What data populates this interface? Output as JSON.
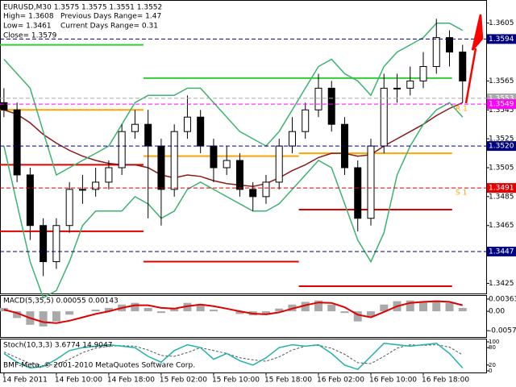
{
  "header": {
    "symbol_line": "EURUSD,M30  1.3575 1.3575 1.3551 1.3552",
    "high": "High= 1.3608",
    "prev_range": "Previous Days Range= 1.47",
    "low": "Low= 1.3461",
    "curr_range": "Current Days Range= 0.31",
    "close": "Close= 1.3579"
  },
  "footer": "BMF-Meta, © 2001-2010 MetaQuotes Software Corp.",
  "chart_data": [
    {
      "type": "candlestick",
      "xlim": [
        -0.3,
        36.86
      ],
      "xticks": [
        {
          "value": 0,
          "label": "14 Feb 2011"
        },
        {
          "value": 4,
          "label": "14 Feb 10:00"
        },
        {
          "value": 8,
          "label": "14 Feb 18:00"
        },
        {
          "value": 12,
          "label": "15 Feb 02:00"
        },
        {
          "value": 16,
          "label": "15 Feb 10:00"
        },
        {
          "value": 20,
          "label": "15 Feb 18:00"
        },
        {
          "value": 24,
          "label": "16 Feb 02:00"
        },
        {
          "value": 28,
          "label": "16 Feb 10:00"
        },
        {
          "value": 32,
          "label": "16 Feb 18:00"
        }
      ],
      "ylim": [
        1.3418,
        1.3621
      ],
      "yticks": [
        1.3605,
        1.3565,
        1.3545,
        1.3525,
        1.3505,
        1.3485,
        1.3465,
        1.3425
      ],
      "open": [
        1.355,
        1.3545,
        1.35,
        1.3465,
        1.344,
        1.3465,
        1.349,
        1.349,
        1.3495,
        1.3505,
        1.353,
        1.3535,
        1.352,
        1.349,
        1.353,
        1.354,
        1.352,
        1.3505,
        1.351,
        1.349,
        1.3485,
        1.3495,
        1.352,
        1.353,
        1.3545,
        1.356,
        1.3535,
        1.3505,
        1.347,
        1.352,
        1.356,
        1.356,
        1.3565,
        1.3575,
        1.3595,
        1.3585
      ],
      "high": [
        1.356,
        1.355,
        1.3505,
        1.347,
        1.347,
        1.3495,
        1.35,
        1.3505,
        1.351,
        1.3535,
        1.3545,
        1.3545,
        1.3525,
        1.3535,
        1.3555,
        1.3545,
        1.3525,
        1.352,
        1.3515,
        1.3495,
        1.35,
        1.3525,
        1.354,
        1.355,
        1.357,
        1.3565,
        1.354,
        1.351,
        1.3525,
        1.357,
        1.357,
        1.3575,
        1.3585,
        1.3608,
        1.36,
        1.359
      ],
      "low": [
        1.354,
        1.3495,
        1.3455,
        1.343,
        1.3435,
        1.346,
        1.348,
        1.3485,
        1.349,
        1.35,
        1.3525,
        1.347,
        1.3465,
        1.3485,
        1.3525,
        1.3515,
        1.3495,
        1.35,
        1.3485,
        1.3475,
        1.348,
        1.349,
        1.3515,
        1.3525,
        1.354,
        1.353,
        1.35,
        1.3461,
        1.3465,
        1.3515,
        1.355,
        1.3555,
        1.356,
        1.357,
        1.3575,
        1.355
      ],
      "close": [
        1.3545,
        1.35,
        1.3465,
        1.344,
        1.3465,
        1.349,
        1.349,
        1.3495,
        1.3505,
        1.353,
        1.3535,
        1.352,
        1.349,
        1.353,
        1.354,
        1.352,
        1.3505,
        1.351,
        1.349,
        1.3485,
        1.3495,
        1.352,
        1.353,
        1.3545,
        1.356,
        1.3535,
        1.3505,
        1.347,
        1.352,
        1.356,
        1.356,
        1.3565,
        1.3575,
        1.3595,
        1.3585,
        1.3565
      ],
      "overlays": [
        {
          "color": "#8b1a1a",
          "values": [
            1.3545,
            1.3542,
            1.3536,
            1.3528,
            1.3522,
            1.3517,
            1.3513,
            1.351,
            1.3508,
            1.3507,
            1.3507,
            1.3505,
            1.35,
            1.3498,
            1.35,
            1.3499,
            1.3496,
            1.3494,
            1.3493,
            1.3492,
            1.3494,
            1.3498,
            1.3503,
            1.3507,
            1.3512,
            1.3515,
            1.3515,
            1.3513,
            1.3514,
            1.352,
            1.3525,
            1.353,
            1.3535,
            1.3541,
            1.3546,
            1.355
          ]
        },
        {
          "color": "#3cb371",
          "values": [
            1.358,
            1.357,
            1.356,
            1.353,
            1.35,
            1.3505,
            1.351,
            1.3515,
            1.352,
            1.3535,
            1.355,
            1.3555,
            1.3555,
            1.3555,
            1.356,
            1.356,
            1.355,
            1.354,
            1.353,
            1.3525,
            1.352,
            1.353,
            1.3545,
            1.356,
            1.3575,
            1.358,
            1.357,
            1.3565,
            1.3555,
            1.3575,
            1.3585,
            1.359,
            1.3595,
            1.3605,
            1.3605,
            1.36
          ]
        },
        {
          "color": "#3cb371",
          "values": [
            1.352,
            1.348,
            1.344,
            1.3415,
            1.342,
            1.344,
            1.3465,
            1.3475,
            1.3475,
            1.3475,
            1.3485,
            1.348,
            1.347,
            1.3475,
            1.349,
            1.3495,
            1.349,
            1.3485,
            1.348,
            1.3475,
            1.3475,
            1.348,
            1.349,
            1.35,
            1.351,
            1.3505,
            1.348,
            1.3455,
            1.344,
            1.346,
            1.35,
            1.352,
            1.3535,
            1.3545,
            1.355,
            1.354
          ]
        }
      ],
      "levels": [
        {
          "color": "#32cd32",
          "value": 1.359,
          "from": -0.3,
          "to": 10.65
        },
        {
          "color": "#32cd32",
          "value": 1.3567,
          "from": 10.65,
          "to": 34.2
        },
        {
          "color": "#ffa500",
          "value": 1.3545,
          "from": -0.3,
          "to": 10.65
        },
        {
          "color": "#ffa500",
          "value": 1.3513,
          "from": 10.65,
          "to": 22.5
        },
        {
          "color": "#ffa500",
          "value": 1.3515,
          "from": 22.5,
          "to": 34.2
        },
        {
          "color": "#e00000",
          "value": 1.3507,
          "from": -0.3,
          "to": 10.65
        },
        {
          "color": "#e00000",
          "value": 1.3461,
          "from": -0.3,
          "to": 10.65
        },
        {
          "color": "#e00000",
          "value": 1.344,
          "from": 10.65,
          "to": 22.5
        },
        {
          "color": "#e00000",
          "value": 1.3476,
          "from": 22.5,
          "to": 34.2
        },
        {
          "color": "#e00000",
          "value": 1.3423,
          "from": 22.5,
          "to": 34.2
        }
      ],
      "price_lines": [
        {
          "value": 1.3594,
          "color": "#000080"
        },
        {
          "value": 1.3553,
          "color": "#a9a9a9"
        },
        {
          "value": 1.3549,
          "color": "#ff00ff",
          "tag": "R 1"
        },
        {
          "value": {
            "value": 1.352,
            "label": "1.3520"
          },
          "color": "#000080"
        },
        {
          "value": 1.3491,
          "color": "#e00000",
          "tag": "S 1"
        },
        {
          "value": 1.3447,
          "color": "#000080"
        }
      ]
    },
    {
      "type": "macd",
      "title": "MACD(5,35,5) 0.00055 0.00143",
      "ylim": [
        -0.00763,
        0.00457
      ],
      "yticks": [
        0.00363,
        {
          "value": 0,
          "label": "0.00"
        },
        -0.00575
      ],
      "histogram": {
        "color": "#a9a9a9",
        "values": [
          0.001,
          -0.002,
          -0.004,
          -0.0045,
          -0.003,
          -0.001,
          0.0,
          0.0005,
          0.001,
          0.002,
          0.0025,
          0.001,
          -0.0005,
          0.001,
          0.0025,
          0.002,
          0.0005,
          0.0,
          -0.0008,
          -0.0012,
          -0.0008,
          0.0008,
          0.002,
          0.0028,
          0.0032,
          0.002,
          -0.0005,
          -0.003,
          -0.0015,
          0.002,
          0.003,
          0.0032,
          0.003,
          0.0032,
          0.0025,
          0.001
        ]
      },
      "signal": {
        "color": "#e00000",
        "values": [
          0.0005,
          -0.0005,
          -0.002,
          -0.0032,
          -0.0035,
          -0.0028,
          -0.0018,
          -0.0008,
          0.0,
          0.001,
          0.0018,
          0.0018,
          0.001,
          0.0008,
          0.0015,
          0.002,
          0.0015,
          0.0008,
          0.0,
          -0.0007,
          -0.0009,
          -0.0003,
          0.0008,
          0.0018,
          0.0026,
          0.0025,
          0.0012,
          -0.001,
          -0.0018,
          -0.0002,
          0.0015,
          0.0025,
          0.0028,
          0.003,
          0.0028,
          0.0018
        ]
      }
    },
    {
      "type": "stochastic",
      "title": "Stoch(10,3,3) 3.6774 14.9047",
      "ylim": [
        0,
        100
      ],
      "yticks": [
        100,
        80,
        20,
        0
      ],
      "main": {
        "color": "#20b2aa",
        "values": [
          60,
          30,
          10,
          15,
          40,
          70,
          80,
          85,
          90,
          85,
          80,
          50,
          30,
          70,
          90,
          80,
          40,
          60,
          35,
          20,
          45,
          80,
          90,
          85,
          90,
          60,
          20,
          5,
          50,
          95,
          90,
          85,
          90,
          95,
          60,
          10
        ]
      },
      "signal": {
        "color": "#555555",
        "values": [
          65,
          45,
          25,
          18,
          22,
          40,
          63,
          78,
          85,
          87,
          85,
          72,
          53,
          50,
          63,
          80,
          70,
          60,
          45,
          38,
          33,
          48,
          72,
          85,
          88,
          78,
          57,
          28,
          25,
          50,
          78,
          90,
          88,
          90,
          82,
          55
        ]
      }
    }
  ]
}
